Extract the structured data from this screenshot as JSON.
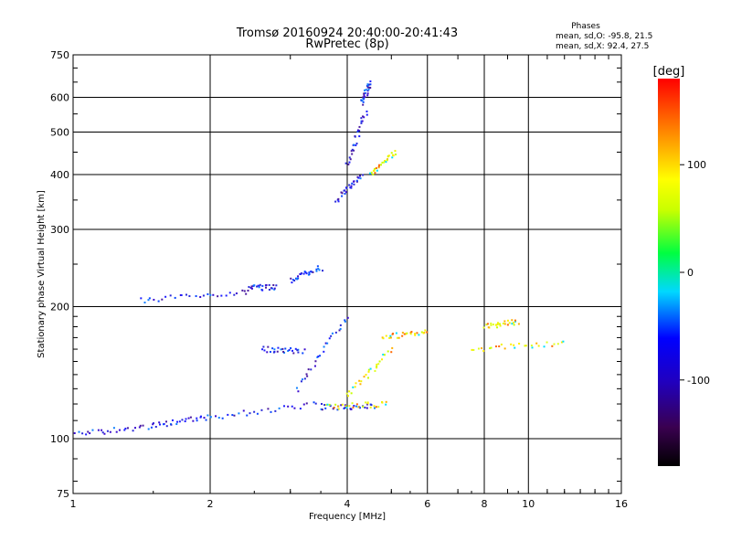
{
  "chart_data": {
    "type": "scatter",
    "title": "Tromsø 20160924 20:40:00-20:41:43",
    "subtitle": "RwPretec (8p)",
    "xlabel": "Frequency [MHz]",
    "ylabel": "Stationary phase Virtual Height [km]",
    "x_scale": "log",
    "y_scale": "log",
    "xlim": [
      1,
      16
    ],
    "ylim": [
      75,
      750
    ],
    "x_ticks": [
      1,
      2,
      4,
      6,
      8,
      10,
      16
    ],
    "y_ticks": [
      75,
      100,
      200,
      300,
      400,
      500,
      600,
      750
    ],
    "grid": true,
    "stats_box": {
      "heading": "Phases",
      "line_o": "mean, sd,O: -95.8, 21.5",
      "line_x": "mean, sd,X:  92.4, 27.5"
    },
    "colorbar": {
      "label": "[deg]",
      "range": [
        -180,
        180
      ],
      "ticks": [
        100,
        0,
        -100
      ],
      "colormap": "rainbow: black-purple-blue-cyan-green-yellow-red"
    },
    "series": [
      {
        "name": "O",
        "phase_mean": -95.8,
        "phase_sd": 21.5,
        "color": "#1e1eff",
        "tracks": [
          {
            "x": [
              1.0,
              1.5
            ],
            "y": [
              102,
              107
            ]
          },
          {
            "x": [
              1.5,
              2.0
            ],
            "y": [
              107,
              112
            ]
          },
          {
            "x": [
              2.0,
              3.5
            ],
            "y": [
              112,
              120
            ]
          },
          {
            "x": [
              3.5,
              4.6
            ],
            "y": [
              118,
              118
            ]
          },
          {
            "x": [
              1.4,
              2.4
            ],
            "y": [
              207,
              215
            ]
          },
          {
            "x": [
              2.4,
              2.8
            ],
            "y": [
              220,
              222
            ]
          },
          {
            "x": [
              3.0,
              3.5
            ],
            "y": [
              230,
              245
            ]
          },
          {
            "x": [
              3.8,
              4.3
            ],
            "y": [
              350,
              400
            ]
          },
          {
            "x": [
              4.0,
              4.4
            ],
            "y": [
              420,
              560
            ]
          },
          {
            "x": [
              4.3,
              4.5
            ],
            "y": [
              580,
              650
            ]
          },
          {
            "x": [
              2.6,
              3.2
            ],
            "y": [
              160,
              158
            ]
          },
          {
            "x": [
              3.1,
              4.0
            ],
            "y": [
              130,
              190
            ]
          }
        ]
      },
      {
        "name": "X",
        "phase_mean": 92.4,
        "phase_sd": 27.5,
        "color": "#ffee00",
        "tracks": [
          {
            "x": [
              3.6,
              4.9
            ],
            "y": [
              118,
              120
            ]
          },
          {
            "x": [
              4.0,
              5.0
            ],
            "y": [
              125,
              160
            ]
          },
          {
            "x": [
              4.8,
              6.0
            ],
            "y": [
              170,
              175
            ]
          },
          {
            "x": [
              4.5,
              5.1
            ],
            "y": [
              400,
              450
            ]
          },
          {
            "x": [
              7.5,
              12.0
            ],
            "y": [
              160,
              165
            ]
          },
          {
            "x": [
              8.0,
              9.5
            ],
            "y": [
              180,
              185
            ]
          }
        ]
      }
    ]
  }
}
